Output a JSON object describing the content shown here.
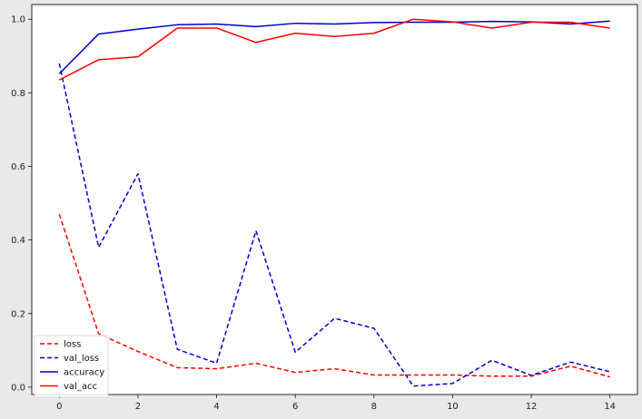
{
  "chart_data": {
    "type": "line",
    "title": "",
    "xlabel": "",
    "ylabel": "",
    "x": [
      0,
      1,
      2,
      3,
      4,
      5,
      6,
      7,
      8,
      9,
      10,
      11,
      12,
      13,
      14
    ],
    "xlim": [
      -0.7,
      14.7
    ],
    "ylim": [
      -0.02,
      1.04
    ],
    "xticks": [
      0,
      2,
      4,
      6,
      8,
      10,
      12,
      14
    ],
    "yticks": [
      0.0,
      0.2,
      0.4,
      0.6,
      0.8,
      1.0
    ],
    "xtick_labels": [
      "0",
      "2",
      "4",
      "6",
      "8",
      "10",
      "12",
      "14"
    ],
    "ytick_labels": [
      "0.0",
      "0.2",
      "0.4",
      "0.6",
      "0.8",
      "1.0"
    ],
    "grid": false,
    "legend_position": "lower-left",
    "series": [
      {
        "name": "loss",
        "color": "#ff0000",
        "dashed": true,
        "values": [
          0.47,
          0.145,
          0.097,
          0.053,
          0.05,
          0.065,
          0.04,
          0.05,
          0.033,
          0.033,
          0.033,
          0.03,
          0.03,
          0.057,
          0.028
        ]
      },
      {
        "name": "val_loss",
        "color": "#0000cc",
        "dashed": true,
        "values": [
          0.88,
          0.38,
          0.58,
          0.103,
          0.065,
          0.425,
          0.095,
          0.187,
          0.16,
          0.003,
          0.01,
          0.073,
          0.032,
          0.068,
          0.042
        ]
      },
      {
        "name": "accuracy",
        "color": "#0000cc",
        "dashed": false,
        "values": [
          0.852,
          0.96,
          0.973,
          0.985,
          0.987,
          0.98,
          0.989,
          0.987,
          0.991,
          0.992,
          0.992,
          0.994,
          0.993,
          0.987,
          0.995
        ]
      },
      {
        "name": "val_acc",
        "color": "#ff0000",
        "dashed": false,
        "values": [
          0.835,
          0.89,
          0.898,
          0.976,
          0.976,
          0.937,
          0.962,
          0.953,
          0.962,
          1.0,
          0.993,
          0.976,
          0.992,
          0.992,
          0.976
        ]
      }
    ]
  }
}
